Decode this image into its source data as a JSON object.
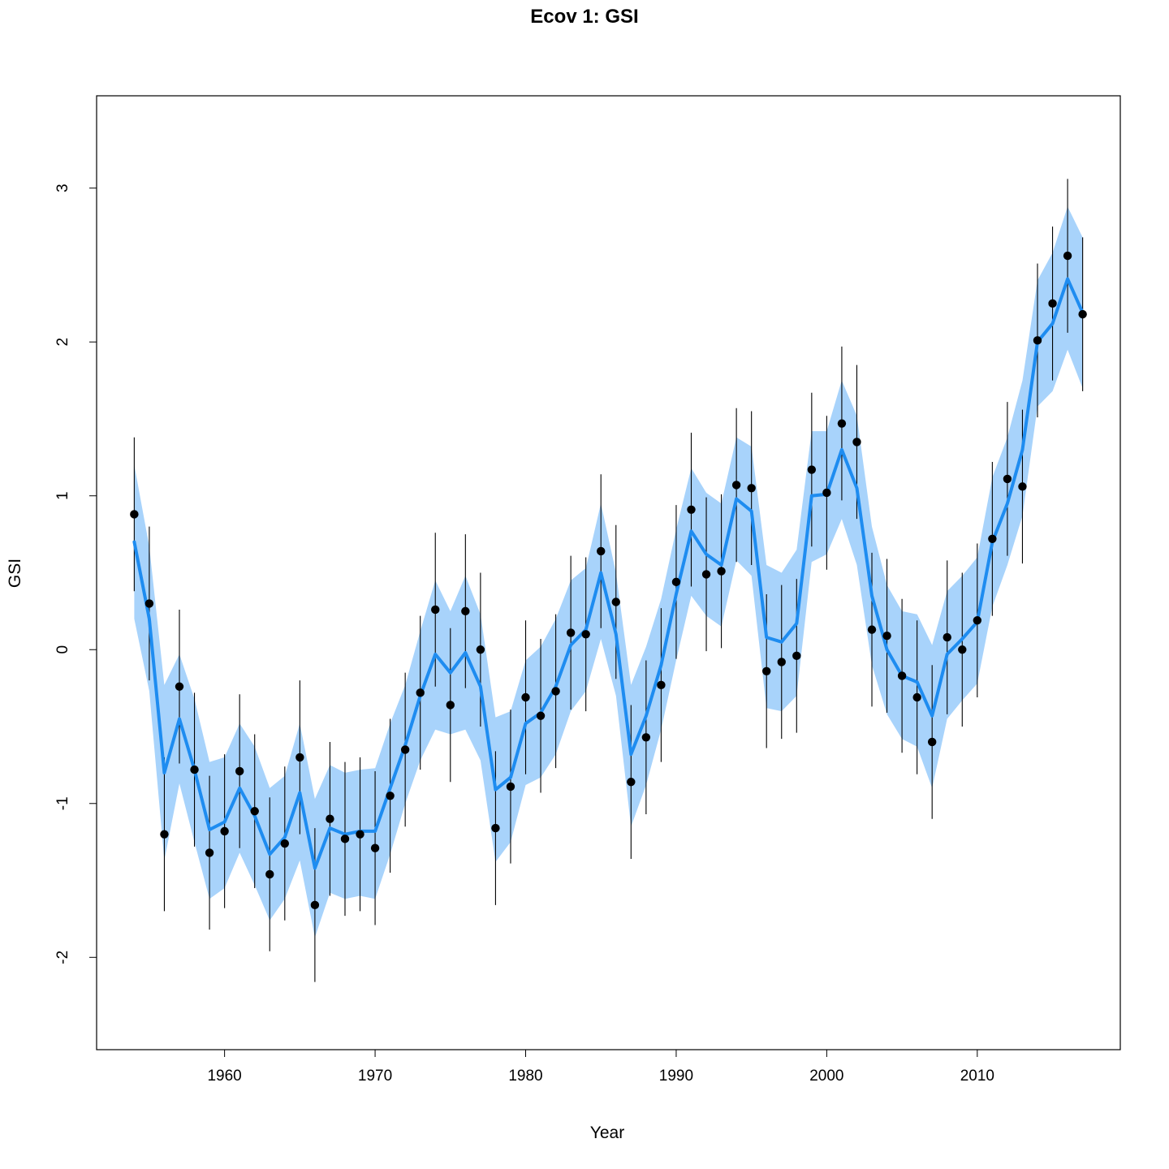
{
  "chart_data": {
    "type": "line",
    "title": "Ecov 1: GSI",
    "xlabel": "Year",
    "ylabel": "GSI",
    "xlim": [
      1951.5,
      2019.5
    ],
    "ylim": [
      -2.6,
      3.6
    ],
    "x_ticks": [
      "1960",
      "1970",
      "1980",
      "1990",
      "2000",
      "2010"
    ],
    "y_ticks": [
      "-2",
      "-1",
      "0",
      "1",
      "2",
      "3"
    ],
    "grid": false,
    "legend": "none",
    "colors": {
      "band": "#a8d3fb",
      "line": "#1e8cf0",
      "points": "#000000",
      "errorbars": "#000000"
    },
    "x": [
      1954,
      1955,
      1956,
      1957,
      1958,
      1959,
      1960,
      1961,
      1962,
      1963,
      1964,
      1965,
      1966,
      1967,
      1968,
      1969,
      1970,
      1971,
      1972,
      1973,
      1974,
      1975,
      1976,
      1977,
      1978,
      1979,
      1980,
      1981,
      1982,
      1983,
      1984,
      1985,
      1986,
      1987,
      1988,
      1989,
      1990,
      1991,
      1992,
      1993,
      1994,
      1995,
      1996,
      1997,
      1998,
      1999,
      2000,
      2001,
      2002,
      2003,
      2004,
      2005,
      2006,
      2007,
      2008,
      2009,
      2010,
      2011,
      2012,
      2013,
      2014,
      2015,
      2016,
      2017
    ],
    "observed": [
      0.88,
      0.3,
      -1.2,
      -0.24,
      -0.78,
      -1.32,
      -1.18,
      -0.79,
      -1.05,
      -1.46,
      -1.26,
      -0.7,
      -1.66,
      -1.1,
      -1.23,
      -1.2,
      -1.29,
      -0.95,
      -0.65,
      -0.28,
      0.26,
      -0.36,
      0.25,
      0.0,
      -1.16,
      -0.89,
      -0.31,
      -0.43,
      -0.27,
      0.11,
      0.1,
      0.64,
      0.31,
      -0.86,
      -0.57,
      -0.23,
      0.44,
      0.91,
      0.49,
      0.51,
      1.07,
      1.05,
      -0.14,
      -0.08,
      -0.04,
      1.17,
      1.02,
      1.47,
      1.35,
      0.13,
      0.09,
      -0.17,
      -0.31,
      -0.6,
      0.08,
      0.0,
      0.19,
      0.72,
      1.11,
      1.06,
      2.01,
      2.25,
      2.56,
      2.18
    ],
    "obs_lower": [
      0.38,
      -0.2,
      -1.7,
      -0.74,
      -1.28,
      -1.82,
      -1.68,
      -1.29,
      -1.55,
      -1.96,
      -1.76,
      -1.2,
      -2.16,
      -1.6,
      -1.73,
      -1.7,
      -1.79,
      -1.45,
      -1.15,
      -0.78,
      -0.24,
      -0.86,
      -0.25,
      -0.5,
      -1.66,
      -1.39,
      -0.81,
      -0.93,
      -0.77,
      -0.39,
      -0.4,
      0.14,
      -0.19,
      -1.36,
      -1.07,
      -0.73,
      -0.06,
      0.41,
      -0.01,
      0.01,
      0.57,
      0.55,
      -0.64,
      -0.58,
      -0.54,
      0.67,
      0.52,
      0.97,
      0.85,
      -0.37,
      -0.41,
      -0.67,
      -0.81,
      -1.1,
      -0.42,
      -0.5,
      -0.31,
      0.22,
      0.61,
      0.56,
      1.51,
      1.75,
      2.06,
      1.68
    ],
    "obs_upper": [
      1.38,
      0.8,
      -0.7,
      0.26,
      -0.28,
      -0.82,
      -0.68,
      -0.29,
      -0.55,
      -0.96,
      -0.76,
      -0.2,
      -1.16,
      -0.6,
      -0.73,
      -0.7,
      -0.79,
      -0.45,
      -0.15,
      0.22,
      0.76,
      0.14,
      0.75,
      0.5,
      -0.66,
      -0.39,
      0.19,
      0.07,
      0.23,
      0.61,
      0.6,
      1.14,
      0.81,
      -0.36,
      -0.07,
      0.27,
      0.94,
      1.41,
      0.99,
      1.01,
      1.57,
      1.55,
      0.36,
      0.42,
      0.46,
      1.67,
      1.52,
      1.97,
      1.85,
      0.63,
      0.59,
      0.33,
      0.19,
      -0.1,
      0.58,
      0.5,
      0.69,
      1.22,
      1.61,
      1.56,
      2.51,
      2.75,
      3.06,
      2.68
    ],
    "estimate": [
      0.7,
      0.2,
      -0.8,
      -0.45,
      -0.78,
      -1.17,
      -1.12,
      -0.9,
      -1.08,
      -1.33,
      -1.22,
      -0.93,
      -1.42,
      -1.16,
      -1.2,
      -1.18,
      -1.18,
      -0.9,
      -0.62,
      -0.3,
      -0.03,
      -0.15,
      -0.02,
      -0.24,
      -0.91,
      -0.83,
      -0.48,
      -0.41,
      -0.24,
      0.03,
      0.13,
      0.5,
      0.1,
      -0.68,
      -0.43,
      -0.1,
      0.36,
      0.77,
      0.62,
      0.55,
      0.98,
      0.9,
      0.08,
      0.05,
      0.17,
      1.0,
      1.01,
      1.3,
      1.05,
      0.35,
      0.0,
      -0.17,
      -0.21,
      -0.43,
      -0.03,
      0.07,
      0.18,
      0.7,
      0.95,
      1.3,
      2.0,
      2.12,
      2.41,
      2.19
    ],
    "est_lower": [
      0.2,
      -0.27,
      -1.37,
      -0.87,
      -1.25,
      -1.62,
      -1.55,
      -1.32,
      -1.53,
      -1.76,
      -1.62,
      -1.37,
      -1.87,
      -1.58,
      -1.62,
      -1.6,
      -1.62,
      -1.33,
      -1.0,
      -0.72,
      -0.52,
      -0.55,
      -0.52,
      -0.72,
      -1.38,
      -1.25,
      -0.88,
      -0.83,
      -0.68,
      -0.4,
      -0.27,
      0.07,
      -0.3,
      -1.15,
      -0.88,
      -0.52,
      -0.07,
      0.35,
      0.22,
      0.15,
      0.58,
      0.48,
      -0.38,
      -0.4,
      -0.3,
      0.57,
      0.62,
      0.85,
      0.55,
      -0.1,
      -0.42,
      -0.58,
      -0.63,
      -0.9,
      -0.45,
      -0.33,
      -0.22,
      0.28,
      0.55,
      0.87,
      1.58,
      1.68,
      1.95,
      1.7
    ],
    "est_upper": [
      1.2,
      0.67,
      -0.23,
      -0.03,
      -0.32,
      -0.73,
      -0.7,
      -0.48,
      -0.63,
      -0.9,
      -0.82,
      -0.48,
      -0.97,
      -0.75,
      -0.8,
      -0.78,
      -0.77,
      -0.48,
      -0.23,
      0.12,
      0.45,
      0.25,
      0.48,
      0.23,
      -0.44,
      -0.4,
      -0.07,
      0.02,
      0.2,
      0.45,
      0.53,
      0.95,
      0.5,
      -0.23,
      0.02,
      0.33,
      0.78,
      1.18,
      1.02,
      0.95,
      1.38,
      1.32,
      0.55,
      0.5,
      0.65,
      1.42,
      1.42,
      1.75,
      1.52,
      0.8,
      0.42,
      0.25,
      0.23,
      0.03,
      0.38,
      0.48,
      0.6,
      1.12,
      1.38,
      1.75,
      2.4,
      2.58,
      2.88,
      2.68
    ]
  }
}
